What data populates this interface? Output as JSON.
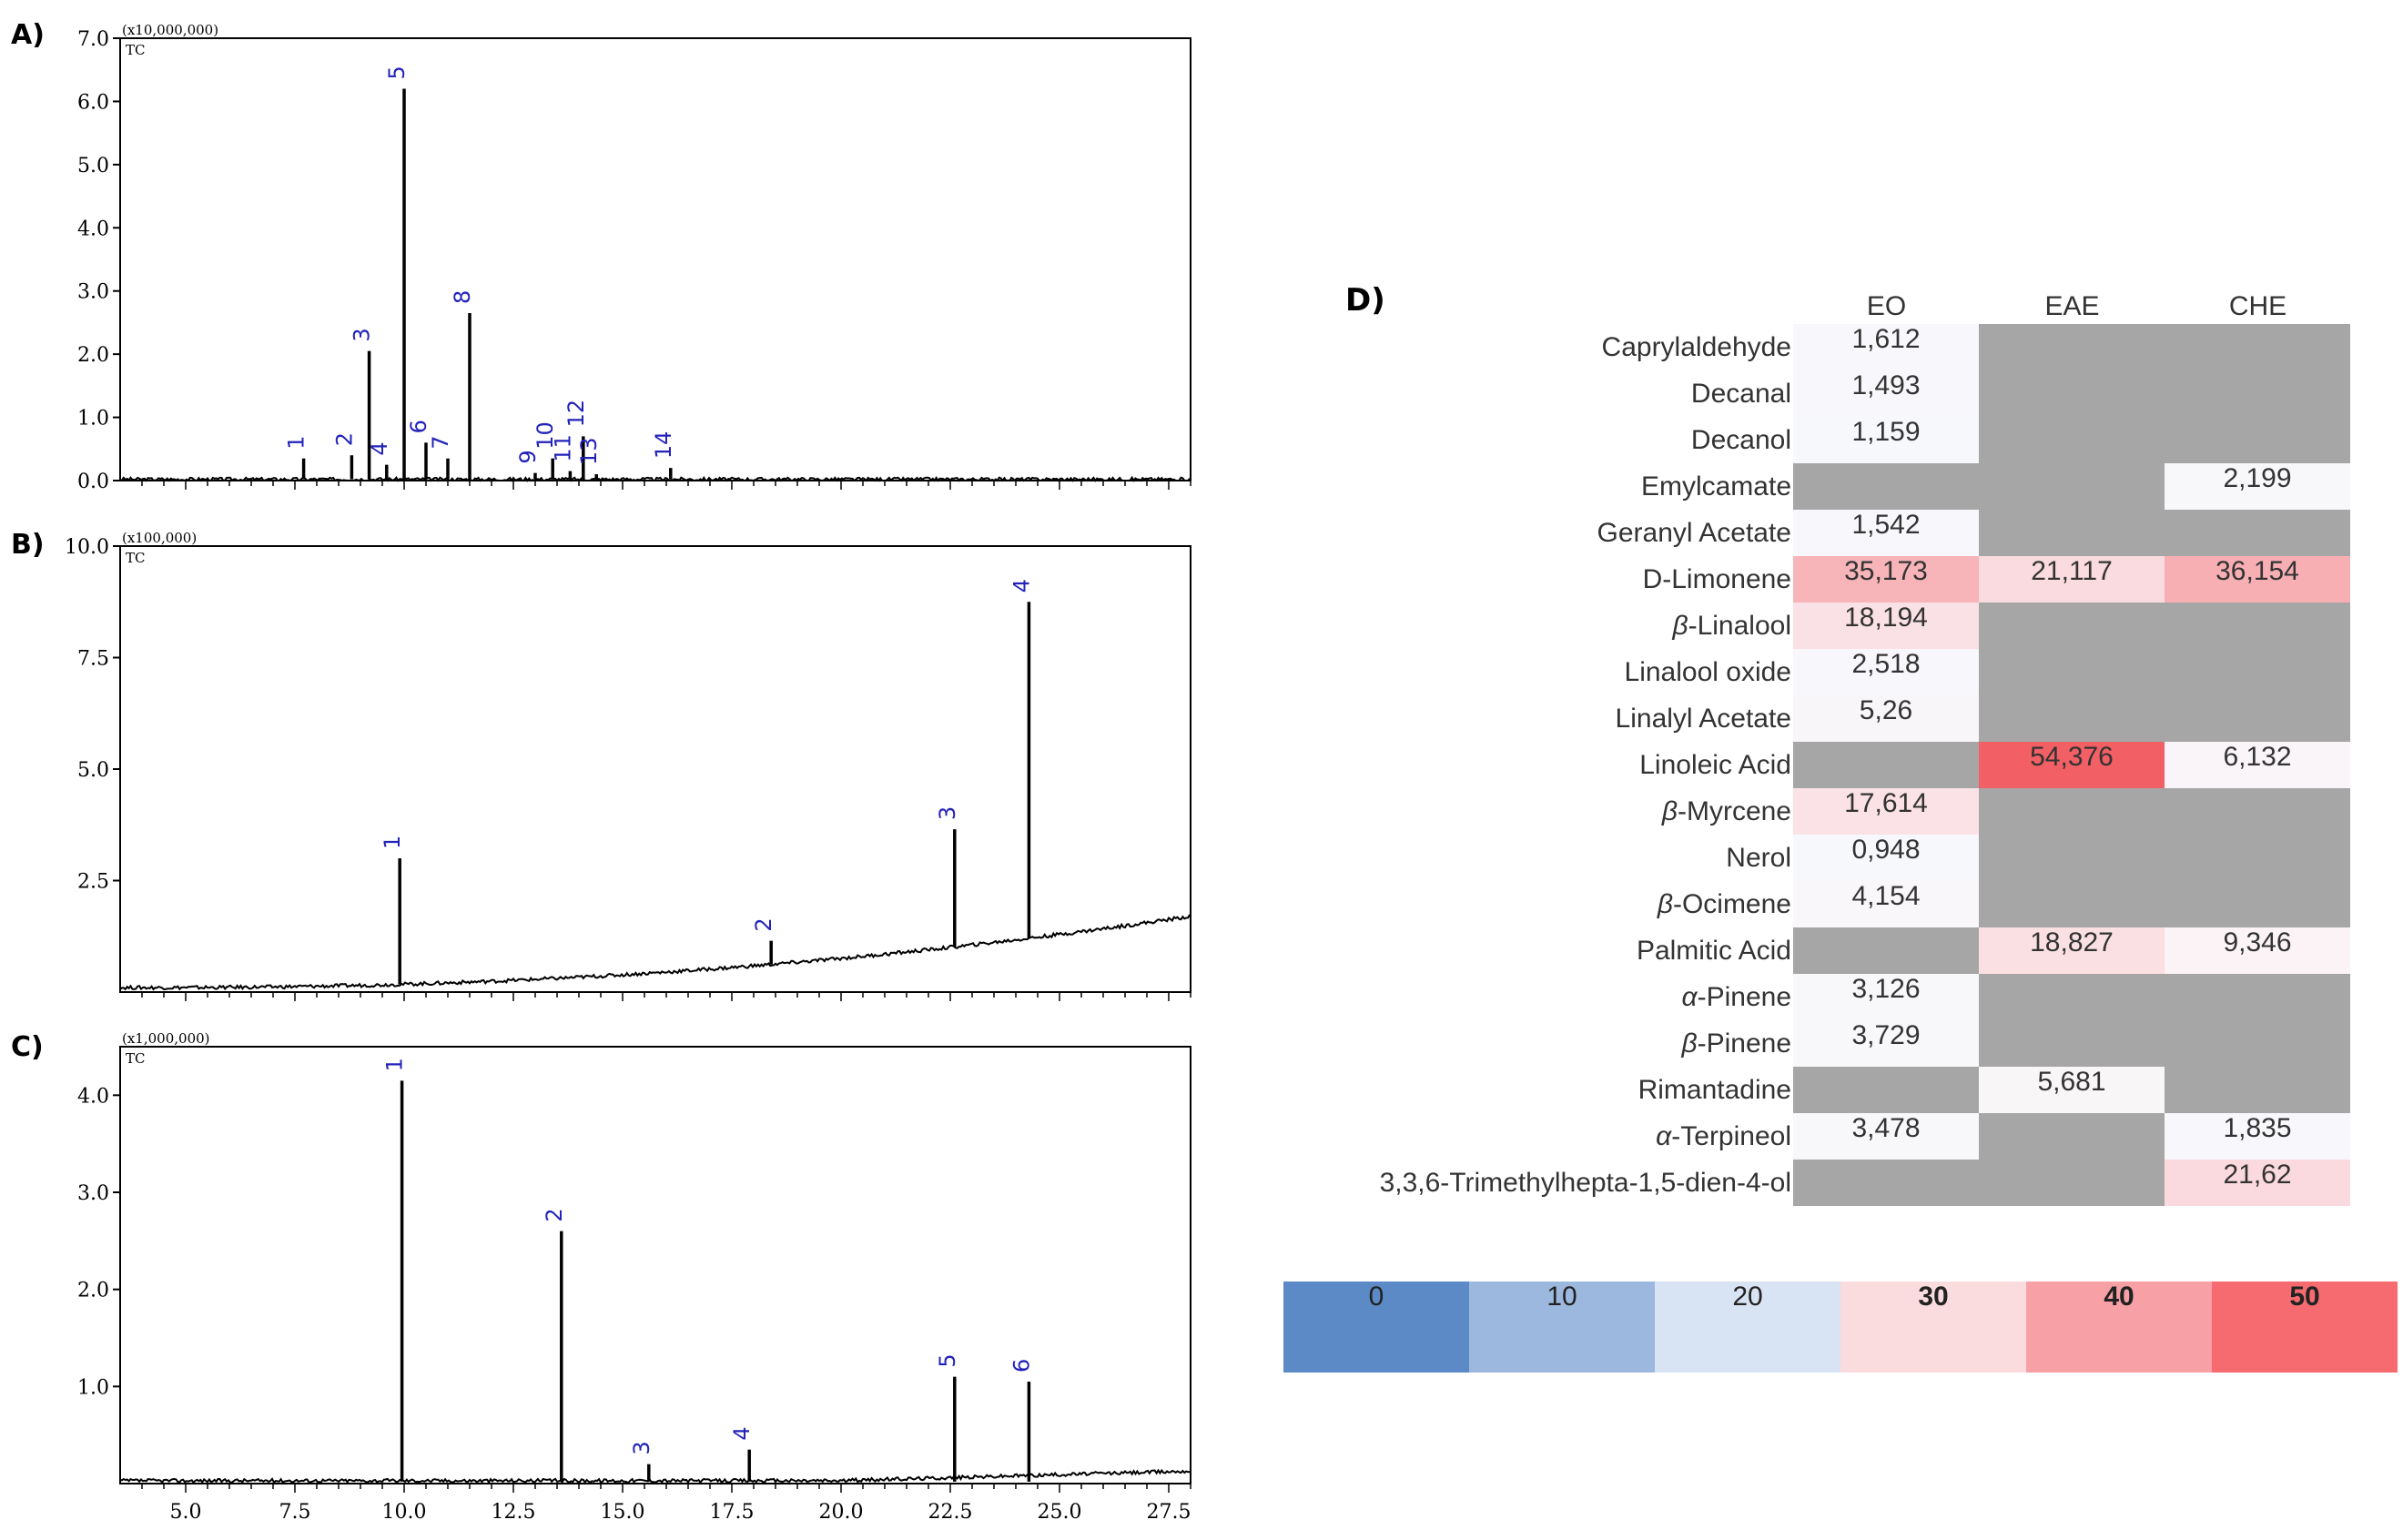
{
  "chart_data": [
    {
      "type": "line",
      "panel": "A)",
      "title": "A)",
      "y_scale_label": "(x10,000,000)",
      "trace_label": "TC",
      "ylim": [
        0,
        7.0
      ],
      "xlim": [
        3.5,
        28.0
      ],
      "y_ticks": [
        "7.0",
        "6.0",
        "5.0",
        "4.0",
        "3.0",
        "2.0",
        "1.0",
        "0.0"
      ],
      "peaks": [
        {
          "label": "1",
          "rt": 7.7,
          "height": 0.35
        },
        {
          "label": "2",
          "rt": 8.8,
          "height": 0.4
        },
        {
          "label": "3",
          "rt": 9.2,
          "height": 2.05
        },
        {
          "label": "4",
          "rt": 9.6,
          "height": 0.25
        },
        {
          "label": "5",
          "rt": 10.0,
          "height": 6.2
        },
        {
          "label": "6",
          "rt": 10.5,
          "height": 0.6
        },
        {
          "label": "7",
          "rt": 11.0,
          "height": 0.35
        },
        {
          "label": "8",
          "rt": 11.5,
          "height": 2.65
        },
        {
          "label": "9",
          "rt": 13.0,
          "height": 0.12
        },
        {
          "label": "10",
          "rt": 13.4,
          "height": 0.35
        },
        {
          "label": "11",
          "rt": 13.8,
          "height": 0.15
        },
        {
          "label": "12",
          "rt": 14.1,
          "height": 0.7
        },
        {
          "label": "13",
          "rt": 14.4,
          "height": 0.1
        },
        {
          "label": "14",
          "rt": 16.1,
          "height": 0.2
        }
      ]
    },
    {
      "type": "line",
      "panel": "B)",
      "title": "B)",
      "y_scale_label": "(x100,000)",
      "trace_label": "TC",
      "ylim": [
        0,
        10.0
      ],
      "xlim": [
        3.5,
        28.0
      ],
      "y_ticks": [
        "10.0",
        "7.5",
        "5.0",
        "2.5"
      ],
      "peaks": [
        {
          "label": "1",
          "rt": 9.9,
          "height": 3.0
        },
        {
          "label": "2",
          "rt": 18.4,
          "height": 1.15
        },
        {
          "label": "3",
          "rt": 22.6,
          "height": 3.65
        },
        {
          "label": "4",
          "rt": 24.3,
          "height": 8.75
        }
      ]
    },
    {
      "type": "line",
      "panel": "C)",
      "title": "C)",
      "y_scale_label": "(x1,000,000)",
      "trace_label": "TC",
      "ylim": [
        0,
        4.5
      ],
      "xlim": [
        3.5,
        28.0
      ],
      "y_ticks": [
        "4.0",
        "3.0",
        "2.0",
        "1.0"
      ],
      "x_ticks": [
        "5.0",
        "7.5",
        "10.0",
        "12.5",
        "15.0",
        "17.5",
        "20.0",
        "22.5",
        "25.0",
        "27.5"
      ],
      "peaks": [
        {
          "label": "1",
          "rt": 9.95,
          "height": 4.15
        },
        {
          "label": "2",
          "rt": 13.6,
          "height": 2.6
        },
        {
          "label": "3",
          "rt": 15.6,
          "height": 0.2
        },
        {
          "label": "4",
          "rt": 17.9,
          "height": 0.35
        },
        {
          "label": "5",
          "rt": 22.6,
          "height": 1.1
        },
        {
          "label": "6",
          "rt": 24.3,
          "height": 1.05
        }
      ]
    },
    {
      "type": "heatmap",
      "panel": "D)",
      "title": "D)",
      "columns": [
        "EO",
        "EAE",
        "CHE"
      ],
      "rows": [
        {
          "name": "Caprylaldehyde",
          "values": [
            "1,612",
            null,
            null
          ]
        },
        {
          "name": "Decanal",
          "values": [
            "1,493",
            null,
            null
          ]
        },
        {
          "name": "Decanol",
          "values": [
            "1,159",
            null,
            null
          ]
        },
        {
          "name": "Emylcamate",
          "values": [
            null,
            null,
            "2,199"
          ]
        },
        {
          "name": "Geranyl Acetate",
          "values": [
            "1,542",
            null,
            null
          ]
        },
        {
          "name": "D-Limonene",
          "values": [
            "35,173",
            "21,117",
            "36,154"
          ]
        },
        {
          "name": "β-Linalool",
          "prefix": "β",
          "suffix": "-Linalool",
          "values": [
            "18,194",
            null,
            null
          ]
        },
        {
          "name": "Linalool oxide",
          "values": [
            "2,518",
            null,
            null
          ]
        },
        {
          "name": "Linalyl Acetate",
          "values": [
            "5,26",
            null,
            null
          ]
        },
        {
          "name": "Linoleic Acid",
          "values": [
            null,
            "54,376",
            "6,132"
          ]
        },
        {
          "name": "β-Myrcene",
          "prefix": "β",
          "suffix": "-Myrcene",
          "values": [
            "17,614",
            null,
            null
          ]
        },
        {
          "name": "Nerol",
          "values": [
            "0,948",
            null,
            null
          ]
        },
        {
          "name": "β-Ocimene",
          "prefix": "β",
          "suffix": "-Ocimene",
          "values": [
            "4,154",
            null,
            null
          ]
        },
        {
          "name": "Palmitic Acid",
          "values": [
            null,
            "18,827",
            "9,346"
          ]
        },
        {
          "name": "α-Pinene",
          "prefix": "α",
          "suffix": "-Pinene",
          "values": [
            "3,126",
            null,
            null
          ]
        },
        {
          "name": "β-Pinene",
          "prefix": "β",
          "suffix": "-Pinene",
          "values": [
            "3,729",
            null,
            null
          ]
        },
        {
          "name": "Rimantadine",
          "values": [
            null,
            "5,681",
            null
          ]
        },
        {
          "name": "α-Terpineol",
          "prefix": "α",
          "suffix": "-Terpineol",
          "values": [
            "3,478",
            null,
            "1,835"
          ]
        },
        {
          "name": "3,3,6-Trimethylhepta-1,5-dien-4-ol",
          "values": [
            null,
            null,
            "21,62"
          ]
        }
      ],
      "color_scale": {
        "ticks": [
          "0",
          "10",
          "20",
          "30",
          "40",
          "50"
        ],
        "colors": [
          "#5b8ac6",
          "#9db8de",
          "#d8e3f3",
          "#fadcdf",
          "#f7a0a5",
          "#f56b70"
        ],
        "missing_color": "#a6a6a6"
      }
    }
  ]
}
